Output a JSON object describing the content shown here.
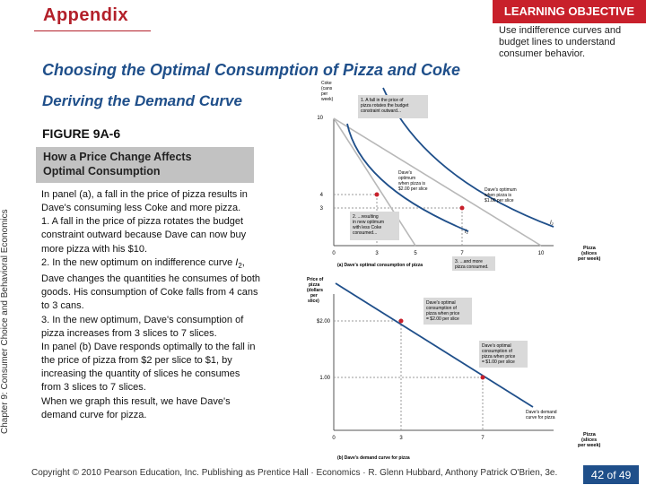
{
  "header": {
    "appendix": "Appendix",
    "learning_objective_title": "LEARNING OBJECTIVE",
    "learning_objective_text": "Use indifference curves and budget lines to understand consumer behavior."
  },
  "main_title": "Choosing the Optimal Consumption of Pizza and Coke",
  "sub_title": "Deriving the Demand Curve",
  "figure_label": "FIGURE 9A-6",
  "caption": [
    "How a Price Change Affects",
    "Optimal Consumption"
  ],
  "side_label": "Chapter 9: Consumer Choice and Behavioral Economics",
  "body": {
    "p1": "In panel (a), a fall in the price of pizza results in Dave's consuming less Coke and more pizza.",
    "p2": "1. A fall in the price of pizza rotates the budget constraint outward because Dave can now buy more pizza with his $10.",
    "p3_before": "2. In the new optimum on indifference curve ",
    "p3_sym": "I",
    "p3_sub": "2",
    "p3_after": ", Dave changes the quantities he consumes of both goods. His consumption of Coke falls from 4 cans to 3 cans.",
    "p4": "3. In the new optimum, Dave's consumption of pizza increases from 3 slices to 7 slices.",
    "p5": "In panel (b) Dave responds optimally to the fall in the price of pizza from $2 per slice to $1, by increasing the quantity of slices he consumes from 3 slices to 7 slices.",
    "p6": "When we graph this result, we have Dave's demand curve for pizza."
  },
  "panel_a": {
    "y_axis_label": [
      "Coke",
      "(cans",
      "per",
      "week)"
    ],
    "x_axis_label": [
      "Pizza",
      "(slices",
      "per week)"
    ],
    "y_ticks": [
      "10",
      "4",
      "3"
    ],
    "x_ticks": [
      "0",
      "3",
      "5",
      "7",
      "10"
    ],
    "callout_1": [
      "1. A fall in the price of",
      "pizza rotates the budget",
      "constraint outward..."
    ],
    "callout_2": [
      "2. ...resulting",
      "in new optimum",
      "with less Coke",
      "consumed..."
    ],
    "callout_3": [
      "3. ...and more",
      "pizza consumed."
    ],
    "optimum_old": [
      "Dave's",
      "optimum",
      "when pizza is",
      "$2.00 per slice"
    ],
    "optimum_new": [
      "Dave's optimum",
      "when pizza is",
      "$1.00 per slice"
    ],
    "curve_i1": "I",
    "curve_i1_sub": "1",
    "curve_i2": "I",
    "curve_i2_sub": "2",
    "title": "(a) Dave's optimal consumption of pizza"
  },
  "panel_b": {
    "y_axis_label": [
      "Price of",
      "pizza",
      "(dollars",
      "per",
      "slice)"
    ],
    "x_axis_label": [
      "Pizza",
      "(slices",
      "per week)"
    ],
    "y_ticks": [
      "$2.00",
      "1.00"
    ],
    "x_ticks": [
      "0",
      "3",
      "7"
    ],
    "optimal_old": [
      "Dave's optimal",
      "consumption of",
      "pizza when price",
      "= $2.00 per slice"
    ],
    "optimal_new": [
      "Dave's optimal",
      "consumption of",
      "pizza when price",
      "= $1.00 per slice"
    ],
    "demand_label": [
      "Dave's demand",
      "curve for pizza"
    ],
    "title": "(b) Dave's demand curve for pizza"
  },
  "chart_data": [
    {
      "type": "line",
      "title": "(a) Dave's optimal consumption of pizza",
      "xlabel": "Pizza (slices per week)",
      "ylabel": "Coke (cans per week)",
      "series": [
        {
          "values": [
            [
              0,
              10
            ],
            [
              5,
              0
            ]
          ]
        },
        {
          "values": [
            [
              0,
              10
            ],
            [
              10,
              0
            ]
          ]
        }
      ],
      "points": [
        [
          3,
          4
        ],
        [
          7,
          3
        ]
      ],
      "xlim": [
        0,
        10
      ],
      "ylim": [
        0,
        10
      ],
      "colors": {
        "budget": "#b8b8b8",
        "indifference": "#1f4f8a",
        "point": "#c8202b"
      }
    },
    {
      "type": "line",
      "title": "(b) Dave's demand curve for pizza",
      "xlabel": "Pizza (slices per week)",
      "ylabel": "Price of pizza (dollars per slice)",
      "series": [
        {
          "values": [
            [
              0,
              2.8
            ],
            [
              3,
              2.0
            ],
            [
              7,
              1.0
            ],
            [
              9,
              0.45
            ]
          ]
        }
      ],
      "points": [
        [
          3,
          2.0
        ],
        [
          7,
          1.0
        ]
      ],
      "xlim": [
        0,
        10
      ],
      "ylim": [
        0,
        3
      ],
      "colors": {
        "demand": "#1f4f8a",
        "point": "#c8202b"
      }
    }
  ],
  "footer": {
    "copyright": "Copyright © 2010 Pearson Education, Inc. Publishing as Prentice Hall · Economics · R. Glenn Hubbard, Anthony Patrick O'Brien, 3e.",
    "page_current": "42",
    "page_total": "of 49"
  }
}
